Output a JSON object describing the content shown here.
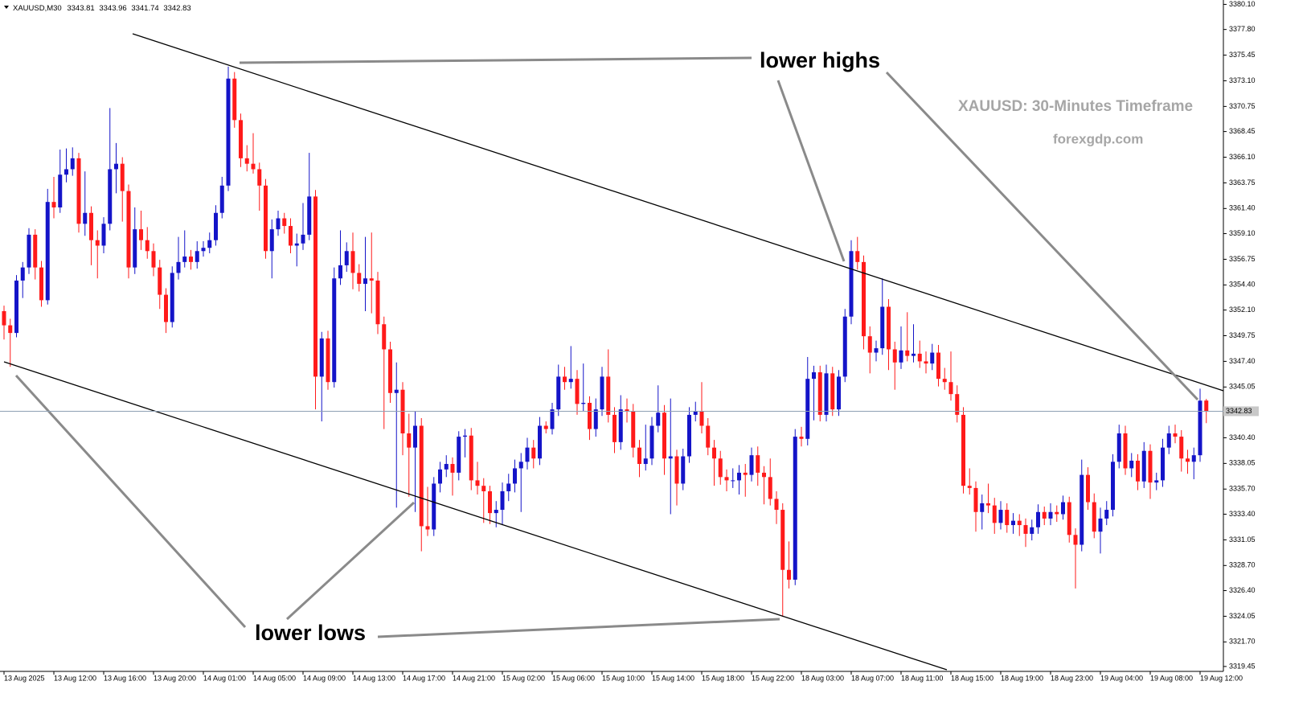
{
  "chart_data": {
    "type": "candlestick",
    "symbol": "XAUUSD,M30",
    "up_color": "#1414c8",
    "down_color": "#ff1a1a",
    "price_line_color": "#8ea0b4",
    "annotations": [
      "lower highs",
      "lower lows",
      "XAUUSD: 30-Minutes Timeframe",
      "forexgdp.com"
    ],
    "ylim": [
      3319.0,
      3380.5
    ],
    "yticks": [
      {
        "value": 3380.1,
        "label": "3380.10"
      },
      {
        "value": 3377.8,
        "label": "3377.80"
      },
      3375.45,
      {
        "value": 3373.1,
        "label": "3373.10"
      },
      3370.75,
      3368.45,
      {
        "value": 3366.1,
        "label": "3366.10"
      },
      3363.75,
      {
        "value": 3361.4,
        "label": "3361.40"
      },
      {
        "value": 3359.1,
        "label": "3359.10"
      },
      3356.75,
      {
        "value": 3354.4,
        "label": "3354.40"
      },
      {
        "value": 3352.1,
        "label": "3352.10"
      },
      3349.75,
      {
        "value": 3347.4,
        "label": "3347.40"
      },
      3345.05,
      {
        "value": 3340.4,
        "label": "3340.40"
      },
      3338.05,
      {
        "value": 3335.7,
        "label": "3335.70"
      },
      {
        "value": 3333.4,
        "label": "3333.40"
      },
      3331.05,
      {
        "value": 3328.7,
        "label": "3328.70"
      },
      {
        "value": 3326.4,
        "label": "3326.40"
      },
      3324.05,
      {
        "value": 3321.7,
        "label": "3321.70"
      },
      3319.45
    ],
    "categories": [
      "13 Aug 2025",
      null,
      null,
      null,
      null,
      null,
      null,
      null,
      "13 Aug 12:00",
      null,
      null,
      null,
      null,
      null,
      null,
      null,
      "13 Aug 16:00",
      null,
      null,
      null,
      null,
      null,
      null,
      null,
      "13 Aug 20:00",
      null,
      null,
      null,
      null,
      null,
      null,
      null,
      "14 Aug 01:00",
      null,
      null,
      null,
      null,
      null,
      null,
      null,
      "14 Aug 05:00",
      null,
      null,
      null,
      null,
      null,
      null,
      null,
      "14 Aug 09:00",
      null,
      null,
      null,
      null,
      null,
      null,
      null,
      "14 Aug 13:00",
      null,
      null,
      null,
      null,
      null,
      null,
      null,
      "14 Aug 17:00",
      null,
      null,
      null,
      null,
      null,
      null,
      null,
      "14 Aug 21:00",
      null,
      null,
      null,
      null,
      null,
      null,
      null,
      "15 Aug 02:00",
      null,
      null,
      null,
      null,
      null,
      null,
      null,
      "15 Aug 06:00",
      null,
      null,
      null,
      null,
      null,
      null,
      null,
      "15 Aug 10:00",
      null,
      null,
      null,
      null,
      null,
      null,
      null,
      "15 Aug 14:00",
      null,
      null,
      null,
      null,
      null,
      null,
      null,
      "15 Aug 18:00",
      null,
      null,
      null,
      null,
      null,
      null,
      null,
      "15 Aug 22:00",
      null,
      null,
      null,
      null,
      null,
      null,
      null,
      "18 Aug 03:00",
      null,
      null,
      null,
      null,
      null,
      null,
      null,
      "18 Aug 07:00",
      null,
      null,
      null,
      null,
      null,
      null,
      null,
      "18 Aug 11:00",
      null,
      null,
      null,
      null,
      null,
      null,
      null,
      "18 Aug 15:00",
      null,
      null,
      null,
      null,
      null,
      null,
      null,
      "18 Aug 19:00",
      null,
      null,
      null,
      null,
      null,
      null,
      null,
      "18 Aug 23:00",
      null,
      null,
      null,
      null,
      null,
      null,
      null,
      "19 Aug 04:00",
      null,
      null,
      null,
      null,
      null,
      null,
      null,
      "19 Aug 08:00",
      null,
      null,
      null,
      null,
      null,
      null,
      null,
      "19 Aug 12:00",
      null
    ],
    "candles": [
      [
        3352.0,
        3352.5,
        3349.4,
        3350.7
      ],
      [
        3350.7,
        3351.3,
        3346.9,
        3350.0
      ],
      [
        3350.0,
        3355.3,
        3349.6,
        3354.8
      ],
      [
        3354.8,
        3356.5,
        3353.2,
        3356.0
      ],
      [
        3356.0,
        3359.6,
        3355.4,
        3359.0
      ],
      [
        3359.0,
        3359.5,
        3354.9,
        3356.0
      ],
      [
        3356.0,
        3356.6,
        3352.4,
        3353.0
      ],
      [
        3353.0,
        3363.2,
        3352.6,
        3362.0
      ],
      [
        3362.0,
        3364.3,
        3360.5,
        3361.5
      ],
      [
        3361.5,
        3366.8,
        3361.0,
        3364.5
      ],
      [
        3364.5,
        3366.9,
        3363.8,
        3365.0
      ],
      [
        3365.0,
        3367.0,
        3364.4,
        3366.0
      ],
      [
        3366.0,
        3366.5,
        3359.2,
        3360.0
      ],
      [
        3360.0,
        3364.8,
        3358.9,
        3361.0
      ],
      [
        3361.0,
        3361.6,
        3356.2,
        3358.5
      ],
      [
        3358.5,
        3359.4,
        3355.0,
        3358.0
      ],
      [
        3358.0,
        3360.6,
        3357.3,
        3360.0
      ],
      [
        3360.0,
        3370.6,
        3359.4,
        3365.0
      ],
      [
        3365.0,
        3367.4,
        3362.8,
        3365.5
      ],
      [
        3365.5,
        3366.1,
        3360.2,
        3363.0
      ],
      [
        3363.0,
        3363.6,
        3355.0,
        3356.0
      ],
      [
        3356.0,
        3361.5,
        3355.4,
        3359.5
      ],
      [
        3359.5,
        3361.2,
        3357.6,
        3358.5
      ],
      [
        3358.5,
        3359.7,
        3356.8,
        3357.5
      ],
      [
        3357.5,
        3358.2,
        3355.2,
        3356.0
      ],
      [
        3356.0,
        3356.7,
        3352.2,
        3353.5
      ],
      [
        3353.5,
        3354.1,
        3350.0,
        3351.0
      ],
      [
        3351.0,
        3356.1,
        3350.5,
        3355.5
      ],
      [
        3355.5,
        3358.8,
        3354.9,
        3356.5
      ],
      [
        3356.5,
        3359.4,
        3356.0,
        3357.0
      ],
      [
        3357.0,
        3357.6,
        3355.8,
        3356.5
      ],
      [
        3356.5,
        3358.4,
        3355.9,
        3357.5
      ],
      [
        3357.5,
        3358.4,
        3357.0,
        3357.8
      ],
      [
        3357.8,
        3359.2,
        3357.3,
        3358.5
      ],
      [
        3358.5,
        3361.7,
        3358.0,
        3361.0
      ],
      [
        3361.0,
        3364.3,
        3360.5,
        3363.5
      ],
      [
        3363.5,
        3374.4,
        3363.0,
        3373.3
      ],
      [
        3373.3,
        3373.9,
        3368.8,
        3369.5
      ],
      [
        3369.5,
        3370.1,
        3365.2,
        3366.0
      ],
      [
        3366.0,
        3367.2,
        3364.8,
        3365.5
      ],
      [
        3365.5,
        3368.3,
        3364.6,
        3365.0
      ],
      [
        3365.0,
        3365.6,
        3361.2,
        3363.5
      ],
      [
        3363.5,
        3364.1,
        3356.8,
        3357.5
      ],
      [
        3357.5,
        3360.4,
        3355.0,
        3359.5
      ],
      [
        3359.5,
        3361.2,
        3358.9,
        3360.5
      ],
      [
        3360.5,
        3361.0,
        3359.1,
        3359.8
      ],
      [
        3359.8,
        3360.5,
        3357.3,
        3358.0
      ],
      [
        3358.0,
        3359.1,
        3356.1,
        3358.2
      ],
      [
        3358.2,
        3361.9,
        3357.6,
        3359.0
      ],
      [
        3359.0,
        3366.5,
        3358.5,
        3362.5
      ],
      [
        3362.5,
        3363.1,
        3343.0,
        3346.0
      ],
      [
        3346.0,
        3350.1,
        3341.9,
        3349.5
      ],
      [
        3349.5,
        3350.2,
        3344.8,
        3345.5
      ],
      [
        3345.5,
        3356.0,
        3345.0,
        3355.0
      ],
      [
        3355.0,
        3359.4,
        3354.4,
        3356.2
      ],
      [
        3356.2,
        3358.3,
        3355.6,
        3357.5
      ],
      [
        3357.5,
        3359.2,
        3354.0,
        3355.5
      ],
      [
        3355.5,
        3356.3,
        3353.8,
        3354.5
      ],
      [
        3354.5,
        3358.8,
        3352.0,
        3355.0
      ],
      [
        3355.0,
        3359.2,
        3351.8,
        3354.8
      ],
      [
        3354.8,
        3355.6,
        3349.9,
        3350.8
      ],
      [
        3350.8,
        3351.5,
        3341.2,
        3348.5
      ],
      [
        3348.5,
        3349.2,
        3343.6,
        3344.5
      ],
      [
        3344.5,
        3347.3,
        3334.0,
        3344.8
      ],
      [
        3344.8,
        3345.5,
        3338.8,
        3340.8
      ],
      [
        3340.8,
        3342.6,
        3335.0,
        3339.5
      ],
      [
        3339.5,
        3342.8,
        3333.6,
        3341.5
      ],
      [
        3341.5,
        3342.2,
        3330.0,
        3332.3
      ],
      [
        3332.3,
        3335.9,
        3331.4,
        3332.0
      ],
      [
        3332.0,
        3336.8,
        3331.4,
        3336.2
      ],
      [
        3336.2,
        3338.2,
        3335.4,
        3337.5
      ],
      [
        3337.5,
        3338.8,
        3336.8,
        3338.0
      ],
      [
        3338.0,
        3338.6,
        3335.1,
        3337.2
      ],
      [
        3337.2,
        3341.0,
        3336.5,
        3340.5
      ],
      [
        3340.5,
        3341.2,
        3338.6,
        3340.6
      ],
      [
        3340.6,
        3341.3,
        3335.6,
        3336.5
      ],
      [
        3336.5,
        3338.2,
        3335.2,
        3336.0
      ],
      [
        3336.0,
        3336.7,
        3332.6,
        3335.5
      ],
      [
        3335.5,
        3336.0,
        3332.5,
        3333.5
      ],
      [
        3333.5,
        3334.6,
        3332.2,
        3333.8
      ],
      [
        3333.8,
        3336.3,
        3332.4,
        3335.5
      ],
      [
        3335.5,
        3337.1,
        3334.6,
        3336.2
      ],
      [
        3336.2,
        3338.4,
        3335.4,
        3337.6
      ],
      [
        3337.6,
        3339.0,
        3333.6,
        3338.2
      ],
      [
        3338.2,
        3340.4,
        3337.5,
        3339.5
      ],
      [
        3339.5,
        3340.2,
        3337.6,
        3338.5
      ],
      [
        3338.5,
        3342.3,
        3337.9,
        3341.5
      ],
      [
        3341.5,
        3341.9,
        3340.8,
        3341.2
      ],
      [
        3341.2,
        3343.6,
        3340.7,
        3343.0
      ],
      [
        3343.0,
        3347.1,
        3342.4,
        3346.0
      ],
      [
        3346.0,
        3346.9,
        3344.8,
        3345.5
      ],
      [
        3345.5,
        3348.8,
        3344.9,
        3345.8
      ],
      [
        3345.8,
        3346.6,
        3342.5,
        3343.5
      ],
      [
        3343.5,
        3347.2,
        3342.8,
        3343.6
      ],
      [
        3343.6,
        3344.2,
        3340.2,
        3341.2
      ],
      [
        3341.2,
        3344.0,
        3340.5,
        3343.0
      ],
      [
        3343.0,
        3346.9,
        3342.4,
        3346.0
      ],
      [
        3346.0,
        3348.5,
        3341.8,
        3342.5
      ],
      [
        3342.5,
        3343.2,
        3339.0,
        3340.0
      ],
      [
        3340.0,
        3344.3,
        3339.3,
        3343.0
      ],
      [
        3343.0,
        3344.0,
        3341.8,
        3342.8
      ],
      [
        3342.8,
        3343.5,
        3338.6,
        3339.5
      ],
      [
        3339.5,
        3340.2,
        3336.8,
        3338.0
      ],
      [
        3338.0,
        3341.6,
        3337.4,
        3338.5
      ],
      [
        3338.5,
        3342.3,
        3337.9,
        3341.5
      ],
      [
        3341.5,
        3345.2,
        3340.9,
        3342.7
      ],
      [
        3342.7,
        3343.4,
        3337.0,
        3338.5
      ],
      [
        3338.5,
        3344.0,
        3333.4,
        3338.7
      ],
      [
        3338.7,
        3339.3,
        3334.2,
        3336.2
      ],
      [
        3336.2,
        3339.4,
        3335.6,
        3338.7
      ],
      [
        3338.7,
        3343.2,
        3338.1,
        3342.5
      ],
      [
        3342.5,
        3343.7,
        3341.9,
        3342.8
      ],
      [
        3342.8,
        3345.5,
        3340.8,
        3341.5
      ],
      [
        3341.5,
        3342.2,
        3338.8,
        3339.5
      ],
      [
        3339.5,
        3340.2,
        3336.0,
        3338.5
      ],
      [
        3338.5,
        3339.2,
        3336.1,
        3336.8
      ],
      [
        3336.8,
        3337.5,
        3335.5,
        3336.5
      ],
      [
        3336.5,
        3337.6,
        3335.8,
        3336.5
      ],
      [
        3336.5,
        3337.9,
        3335.2,
        3337.2
      ],
      [
        3337.2,
        3338.0,
        3335.0,
        3337.0
      ],
      [
        3337.0,
        3339.5,
        3336.4,
        3338.8
      ],
      [
        3338.8,
        3339.6,
        3336.0,
        3337.2
      ],
      [
        3337.2,
        3337.8,
        3334.3,
        3336.8
      ],
      [
        3336.8,
        3338.5,
        3334.2,
        3334.8
      ],
      [
        3334.8,
        3335.5,
        3332.5,
        3333.8
      ],
      [
        3333.8,
        3334.4,
        3324.0,
        3328.3
      ],
      [
        3328.3,
        3330.9,
        3326.6,
        3327.4
      ],
      [
        3327.4,
        3341.2,
        3326.9,
        3340.5
      ],
      [
        3340.5,
        3341.4,
        3339.6,
        3340.3
      ],
      [
        3340.3,
        3347.8,
        3339.7,
        3345.8
      ],
      [
        3345.8,
        3347.0,
        3342.0,
        3346.4
      ],
      [
        3346.4,
        3347.0,
        3341.9,
        3342.5
      ],
      [
        3342.5,
        3347.1,
        3341.9,
        3346.3
      ],
      [
        3346.3,
        3346.9,
        3342.4,
        3343.0
      ],
      [
        3343.0,
        3346.6,
        3342.4,
        3346.0
      ],
      [
        3346.0,
        3352.2,
        3345.5,
        3351.5
      ],
      [
        3351.5,
        3358.5,
        3350.8,
        3357.5
      ],
      [
        3357.5,
        3358.8,
        3355.8,
        3356.5
      ],
      [
        3356.5,
        3357.1,
        3348.5,
        3349.7
      ],
      [
        3349.7,
        3350.6,
        3346.3,
        3348.2
      ],
      [
        3348.2,
        3349.3,
        3347.4,
        3348.6
      ],
      [
        3348.6,
        3355.0,
        3348.0,
        3352.4
      ],
      [
        3352.4,
        3353.1,
        3346.6,
        3348.5
      ],
      [
        3348.5,
        3349.2,
        3344.8,
        3347.3
      ],
      [
        3347.3,
        3350.6,
        3346.7,
        3348.4
      ],
      [
        3348.4,
        3351.9,
        3347.4,
        3347.9
      ],
      [
        3347.9,
        3350.8,
        3347.3,
        3348.1
      ],
      [
        3348.1,
        3349.3,
        3346.8,
        3347.4
      ],
      [
        3347.4,
        3348.3,
        3346.3,
        3347.2
      ],
      [
        3347.2,
        3349.0,
        3346.6,
        3348.2
      ],
      [
        3348.2,
        3348.9,
        3345.1,
        3345.8
      ],
      [
        3345.8,
        3346.8,
        3344.8,
        3345.5
      ],
      [
        3345.5,
        3348.3,
        3343.8,
        3344.4
      ],
      [
        3344.4,
        3345.2,
        3341.8,
        3342.5
      ],
      [
        3342.5,
        3343.2,
        3335.3,
        3336.0
      ],
      [
        3336.0,
        3337.6,
        3335.2,
        3335.8
      ],
      [
        3335.8,
        3336.4,
        3331.8,
        3333.6
      ],
      [
        3333.6,
        3335.2,
        3332.0,
        3334.4
      ],
      [
        3334.4,
        3336.2,
        3333.5,
        3334.2
      ],
      [
        3334.2,
        3334.9,
        3331.6,
        3332.6
      ],
      [
        3332.6,
        3334.6,
        3332.0,
        3333.8
      ],
      [
        3333.8,
        3334.4,
        3331.7,
        3332.4
      ],
      [
        3332.4,
        3333.5,
        3331.6,
        3332.8
      ],
      [
        3332.8,
        3333.4,
        3331.4,
        3332.4
      ],
      [
        3332.4,
        3333.0,
        3330.4,
        3331.6
      ],
      [
        3331.6,
        3332.9,
        3331.0,
        3332.2
      ],
      [
        3332.2,
        3334.3,
        3331.6,
        3333.6
      ],
      [
        3333.6,
        3334.1,
        3332.4,
        3333.0
      ],
      [
        3333.0,
        3334.4,
        3332.4,
        3333.6
      ],
      [
        3333.6,
        3334.2,
        3332.7,
        3333.4
      ],
      [
        3333.4,
        3335.1,
        3332.9,
        3334.5
      ],
      [
        3334.5,
        3335.0,
        3330.8,
        3331.5
      ],
      [
        3331.5,
        3332.1,
        3326.6,
        3330.6
      ],
      [
        3330.6,
        3338.4,
        3330.0,
        3337.0
      ],
      [
        3337.0,
        3337.7,
        3333.8,
        3334.5
      ],
      [
        3334.5,
        3335.3,
        3331.2,
        3331.8
      ],
      [
        3331.8,
        3334.0,
        3329.8,
        3333.0
      ],
      [
        3333.0,
        3334.6,
        3332.4,
        3333.8
      ],
      [
        3333.8,
        3338.9,
        3333.2,
        3338.2
      ],
      [
        3338.2,
        3341.6,
        3337.6,
        3340.8
      ],
      [
        3340.8,
        3341.5,
        3337.0,
        3337.6
      ],
      [
        3337.6,
        3339.0,
        3336.8,
        3338.3
      ],
      [
        3338.3,
        3338.9,
        3335.6,
        3336.4
      ],
      [
        3336.4,
        3340.0,
        3335.8,
        3339.2
      ],
      [
        3339.2,
        3339.8,
        3334.8,
        3336.3
      ],
      [
        3336.3,
        3337.2,
        3335.6,
        3336.5
      ],
      [
        3336.5,
        3340.3,
        3335.9,
        3339.5
      ],
      [
        3339.5,
        3341.5,
        3338.9,
        3340.8
      ],
      [
        3340.8,
        3341.6,
        3339.9,
        3340.5
      ],
      [
        3340.5,
        3341.1,
        3337.3,
        3338.5
      ],
      [
        3338.5,
        3339.3,
        3337.1,
        3338.2
      ],
      [
        3338.2,
        3339.5,
        3336.6,
        3338.8
      ],
      [
        3338.8,
        3344.9,
        3338.2,
        3343.8
      ],
      [
        3343.81,
        3343.96,
        3341.74,
        3342.83
      ]
    ]
  }
}
